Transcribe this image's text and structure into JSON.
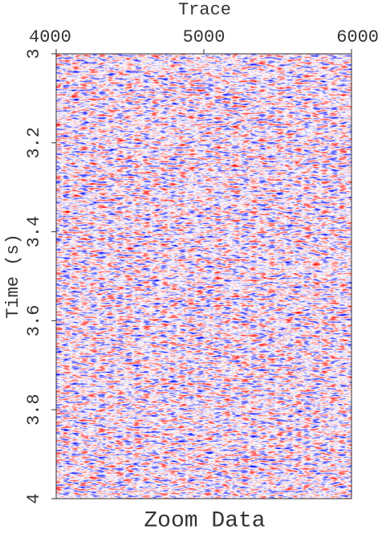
{
  "chart_data": {
    "type": "image",
    "title": "Zoom Data",
    "xlabel": "Trace",
    "ylabel": "Time (s)",
    "xlim": [
      4000,
      6000
    ],
    "xticks": [
      4000,
      5000,
      6000
    ],
    "ylim": [
      3,
      4
    ],
    "yticks": [
      3,
      3.2,
      3.4,
      3.6,
      3.8,
      4
    ],
    "y_inverted": true
  }
}
